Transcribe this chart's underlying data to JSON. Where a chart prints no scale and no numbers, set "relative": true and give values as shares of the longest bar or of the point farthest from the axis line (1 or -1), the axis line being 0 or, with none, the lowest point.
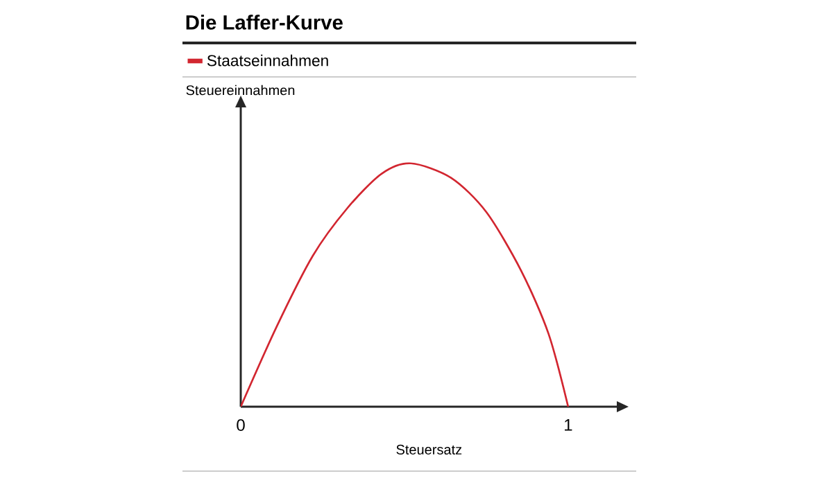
{
  "chart_data": {
    "type": "line",
    "title": "Die Laffer-Kurve",
    "xlabel": "Steuersatz",
    "ylabel": "Steuereinnahmen",
    "relative": true,
    "xlim": [
      0,
      1.15
    ],
    "xticks": [
      0,
      1
    ],
    "legend": "top left",
    "grid": false,
    "x": [
      0,
      0.11,
      0.22,
      0.325,
      0.43,
      0.52,
      0.643,
      0.75,
      0.856,
      0.94,
      1
    ],
    "series": [
      {
        "name": "Staatseinnahmen",
        "color": "#d22630",
        "values": [
          0,
          0.33,
          0.62,
          0.815,
          0.957,
          1,
          0.94,
          0.8,
          0.56,
          0.3,
          0
        ]
      }
    ]
  }
}
